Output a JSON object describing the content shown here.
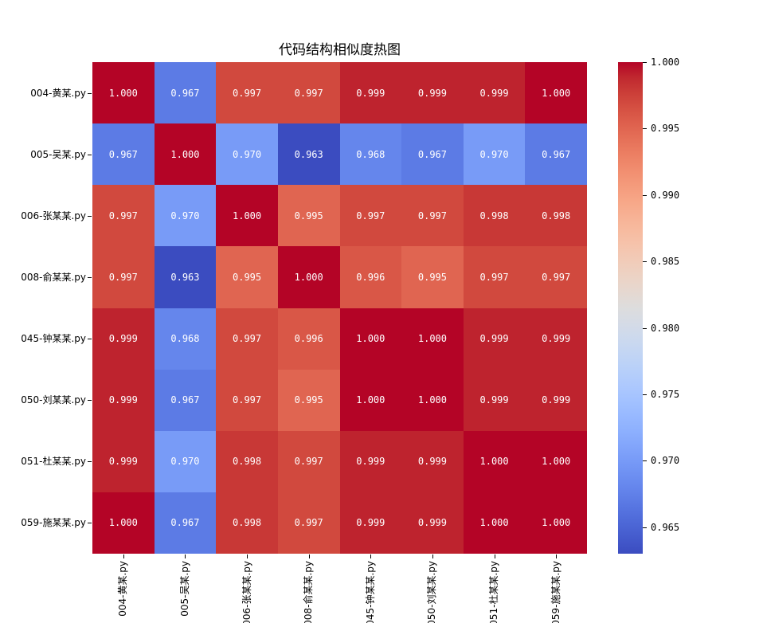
{
  "title": "代码结构相似度热图",
  "chart_data": {
    "type": "heatmap",
    "title": "代码结构相似度热图",
    "row_labels": [
      "004-黄某.py",
      "005-吴某.py",
      "006-张某某.py",
      "008-俞某某.py",
      "045-钟某某.py",
      "050-刘某某.py",
      "051-杜某某.py",
      "059-施某某.py"
    ],
    "col_labels": [
      "004-黄某.py",
      "005-吴某.py",
      "006-张某某.py",
      "008-俞某某.py",
      "045-钟某某.py",
      "050-刘某某.py",
      "051-杜某某.py",
      "059-施某某.py"
    ],
    "matrix": [
      [
        1.0,
        0.967,
        0.997,
        0.997,
        0.999,
        0.999,
        0.999,
        1.0
      ],
      [
        0.967,
        1.0,
        0.97,
        0.963,
        0.968,
        0.967,
        0.97,
        0.967
      ],
      [
        0.997,
        0.97,
        1.0,
        0.995,
        0.997,
        0.997,
        0.998,
        0.998
      ],
      [
        0.997,
        0.963,
        0.995,
        1.0,
        0.996,
        0.995,
        0.997,
        0.997
      ],
      [
        0.999,
        0.968,
        0.997,
        0.996,
        1.0,
        1.0,
        0.999,
        0.999
      ],
      [
        0.999,
        0.967,
        0.997,
        0.995,
        1.0,
        1.0,
        0.999,
        0.999
      ],
      [
        0.999,
        0.97,
        0.998,
        0.997,
        0.999,
        0.999,
        1.0,
        1.0
      ],
      [
        1.0,
        0.967,
        0.998,
        0.997,
        0.999,
        0.999,
        1.0,
        1.0
      ]
    ],
    "value_decimals": 3,
    "annotation_text_color": "#ffffff",
    "colormap": "coolwarm",
    "vmin": 0.963,
    "vmax": 1.0,
    "colorbar_ticks": [
      1.0,
      0.995,
      0.99,
      0.985,
      0.98,
      0.975,
      0.97,
      0.965
    ],
    "colors": {
      "min_color": "#3b4cc0",
      "mid_color": "#dddddd",
      "max_color": "#b40426"
    },
    "legend_position": "right",
    "grid": false
  }
}
